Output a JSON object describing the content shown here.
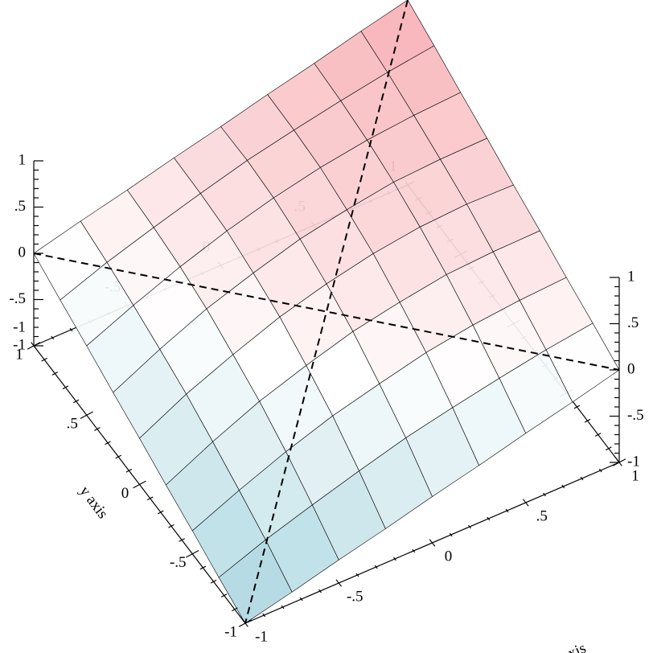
{
  "chart_data": {
    "type": "surface3d",
    "x_label": "x axis",
    "y_label": "y axis",
    "x": [
      -1,
      -0.75,
      -0.5,
      -0.25,
      0,
      0.25,
      0.5,
      0.75,
      1
    ],
    "y": [
      -1,
      -0.75,
      -0.5,
      -0.25,
      0,
      0.25,
      0.5,
      0.75,
      1
    ],
    "z": [
      [
        -1,
        -0.88,
        -0.75,
        -0.63,
        -0.5,
        -0.38,
        -0.25,
        -0.13,
        0
      ],
      [
        -0.88,
        -0.69,
        -0.53,
        -0.38,
        -0.24,
        -0.13,
        -0.03,
        0.06,
        0.13
      ],
      [
        -0.75,
        -0.53,
        -0.33,
        -0.16,
        -0.03,
        0.09,
        0.17,
        0.22,
        0.25
      ],
      [
        -0.63,
        -0.38,
        -0.16,
        0.01,
        0.16,
        0.26,
        0.34,
        0.37,
        0.38
      ],
      [
        -0.5,
        -0.24,
        -0.03,
        0.16,
        0.3,
        0.41,
        0.48,
        0.51,
        0.5
      ],
      [
        -0.38,
        -0.13,
        0.09,
        0.26,
        0.41,
        0.51,
        0.59,
        0.62,
        0.63
      ],
      [
        -0.25,
        -0.03,
        0.17,
        0.34,
        0.48,
        0.59,
        0.67,
        0.72,
        0.75
      ],
      [
        -0.13,
        0.06,
        0.22,
        0.37,
        0.51,
        0.62,
        0.72,
        0.81,
        0.88
      ],
      [
        0,
        0.13,
        0.25,
        0.38,
        0.5,
        0.63,
        0.75,
        0.88,
        1
      ]
    ],
    "xlim": [
      -1,
      1
    ],
    "ylim": [
      -1,
      1
    ],
    "zlim": [
      -1,
      1
    ],
    "xticks": [
      -1,
      {
        "value": -0.5,
        "label": "-.5"
      },
      0,
      {
        "value": 0.5,
        "label": ".5"
      },
      1
    ],
    "yticks": [
      -1,
      {
        "value": -0.5,
        "label": "-.5"
      },
      0,
      {
        "value": 0.5,
        "label": ".5"
      },
      1
    ],
    "zticks": [
      -1,
      {
        "value": -0.5,
        "label": "-.5"
      },
      0,
      {
        "value": 0.5,
        "label": ".5"
      },
      1
    ],
    "minor_ticks": 5,
    "low_color": "#a3d2dd",
    "high_color": "#f7a9ae"
  }
}
